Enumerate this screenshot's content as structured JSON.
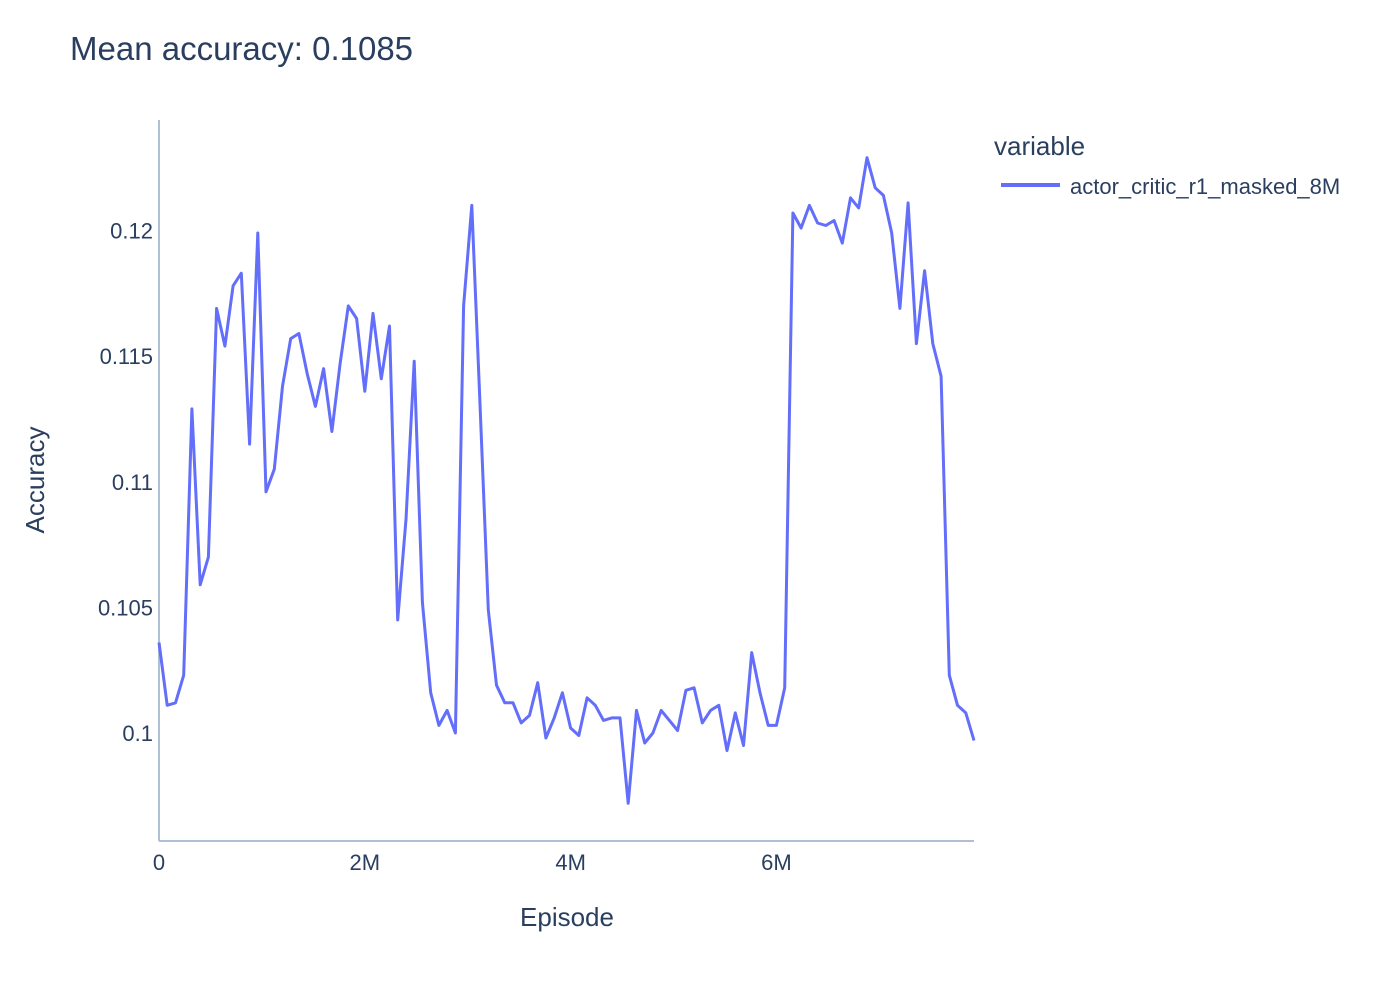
{
  "chart_data": {
    "type": "line",
    "title": "Mean accuracy: 0.1085",
    "xlabel": "Episode",
    "ylabel": "Accuracy",
    "xlim": [
      0,
      7920000
    ],
    "ylim": [
      0.0957,
      0.1244
    ],
    "x_ticks": [
      {
        "value": 0,
        "label": "0"
      },
      {
        "value": 2000000,
        "label": "2M"
      },
      {
        "value": 4000000,
        "label": "4M"
      },
      {
        "value": 6000000,
        "label": "6M"
      }
    ],
    "y_ticks": [
      {
        "value": 0.1,
        "label": "0.1"
      },
      {
        "value": 0.105,
        "label": "0.105"
      },
      {
        "value": 0.11,
        "label": "0.11"
      },
      {
        "value": 0.115,
        "label": "0.115"
      },
      {
        "value": 0.12,
        "label": "0.12"
      }
    ],
    "grid": false,
    "legend": {
      "title": "variable",
      "position": "top-right"
    },
    "colors": {
      "series": "#636efa",
      "axis": "#b0c0d4",
      "text": "#2a3f5f"
    },
    "series": [
      {
        "name": "actor_critic_r1_masked_8M",
        "x": [
          0,
          80000,
          160000,
          240000,
          320000,
          400000,
          480000,
          560000,
          640000,
          720000,
          800000,
          880000,
          960000,
          1040000,
          1120000,
          1200000,
          1280000,
          1360000,
          1440000,
          1520000,
          1600000,
          1680000,
          1760000,
          1840000,
          1920000,
          2000000,
          2080000,
          2160000,
          2240000,
          2320000,
          2400000,
          2480000,
          2560000,
          2640000,
          2720000,
          2800000,
          2880000,
          2960000,
          3040000,
          3120000,
          3200000,
          3280000,
          3360000,
          3440000,
          3520000,
          3600000,
          3680000,
          3760000,
          3840000,
          3920000,
          4000000,
          4080000,
          4160000,
          4240000,
          4320000,
          4400000,
          4480000,
          4560000,
          4640000,
          4720000,
          4800000,
          4880000,
          4960000,
          5040000,
          5120000,
          5200000,
          5280000,
          5360000,
          5440000,
          5520000,
          5600000,
          5680000,
          5760000,
          5840000,
          5920000,
          6000000,
          6080000,
          6160000,
          6240000,
          6320000,
          6400000,
          6480000,
          6560000,
          6640000,
          6720000,
          6800000,
          6880000,
          6960000,
          7040000,
          7120000,
          7200000,
          7280000,
          7360000,
          7440000,
          7520000,
          7600000,
          7680000,
          7760000,
          7840000,
          7920000
        ],
        "values": [
          0.1036,
          0.1011,
          0.1012,
          0.1023,
          0.1129,
          0.1059,
          0.107,
          0.1169,
          0.1154,
          0.1178,
          0.1183,
          0.1115,
          0.1199,
          0.1096,
          0.1105,
          0.1138,
          0.1157,
          0.1159,
          0.1143,
          0.113,
          0.1145,
          0.112,
          0.1147,
          0.117,
          0.1165,
          0.1136,
          0.1167,
          0.1141,
          0.1162,
          0.1045,
          0.1085,
          0.1148,
          0.1052,
          0.1016,
          0.1003,
          0.1009,
          0.1,
          0.117,
          0.121,
          0.113,
          0.1049,
          0.1019,
          0.1012,
          0.1012,
          0.1004,
          0.1007,
          0.102,
          0.0998,
          0.1006,
          0.1016,
          0.1002,
          0.0999,
          0.1014,
          0.1011,
          0.1005,
          0.1006,
          0.1006,
          0.0972,
          0.1009,
          0.0996,
          0.1,
          0.1009,
          0.1005,
          0.1001,
          0.1017,
          0.1018,
          0.1004,
          0.1009,
          0.1011,
          0.0993,
          0.1008,
          0.0995,
          0.1032,
          0.1016,
          0.1003,
          0.1003,
          0.1018,
          0.1207,
          0.1201,
          0.121,
          0.1203,
          0.1202,
          0.1204,
          0.1195,
          0.1213,
          0.1209,
          0.1229,
          0.1217,
          0.1214,
          0.1199,
          0.1169,
          0.1211,
          0.1155,
          0.1184,
          0.1155,
          0.1142,
          0.1023,
          0.1011,
          0.1008,
          0.0997
        ]
      }
    ]
  }
}
